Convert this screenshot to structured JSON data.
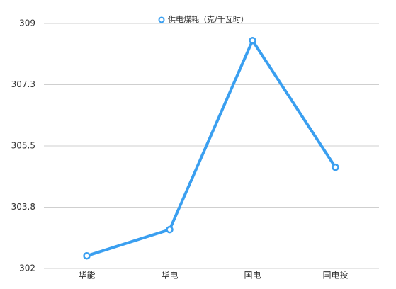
{
  "chart_data": {
    "type": "line",
    "categories": [
      "华能",
      "华电",
      "国电",
      "国电投"
    ],
    "series": [
      {
        "name": "供电煤耗（克/千瓦时）",
        "color": "#3a9ff0",
        "values": [
          302.36,
          303.11,
          308.51,
          304.89
        ]
      }
    ],
    "ylim": [
      302,
      309
    ],
    "yticks": [
      302,
      {
        "value": 303.75,
        "label": "303.8"
      },
      305.5,
      {
        "value": 307.25,
        "label": "307.3"
      },
      309
    ],
    "grid": true
  }
}
